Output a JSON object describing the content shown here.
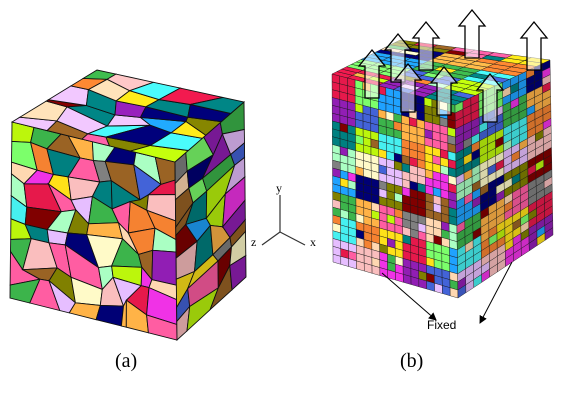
{
  "captions": {
    "a": "(a)",
    "b": "(b)"
  },
  "axes": {
    "x": "x",
    "y": "y",
    "z": "z"
  },
  "annotation": {
    "fixed": "Fixed"
  },
  "colors": {
    "edge": "#111111",
    "arrow_fill": "#ffffff",
    "palette": [
      "#e6194b",
      "#3cb44b",
      "#ffe119",
      "#4363d8",
      "#f58231",
      "#911eb4",
      "#46f0f0",
      "#f032e6",
      "#bcf60c",
      "#fabebe",
      "#008080",
      "#e6beff",
      "#9a6324",
      "#fffac8",
      "#800000",
      "#aaffc3",
      "#808000",
      "#ffd8b1",
      "#000075",
      "#808080",
      "#1fa2ff",
      "#ff5da2",
      "#7cff6b",
      "#ffb347"
    ]
  }
}
